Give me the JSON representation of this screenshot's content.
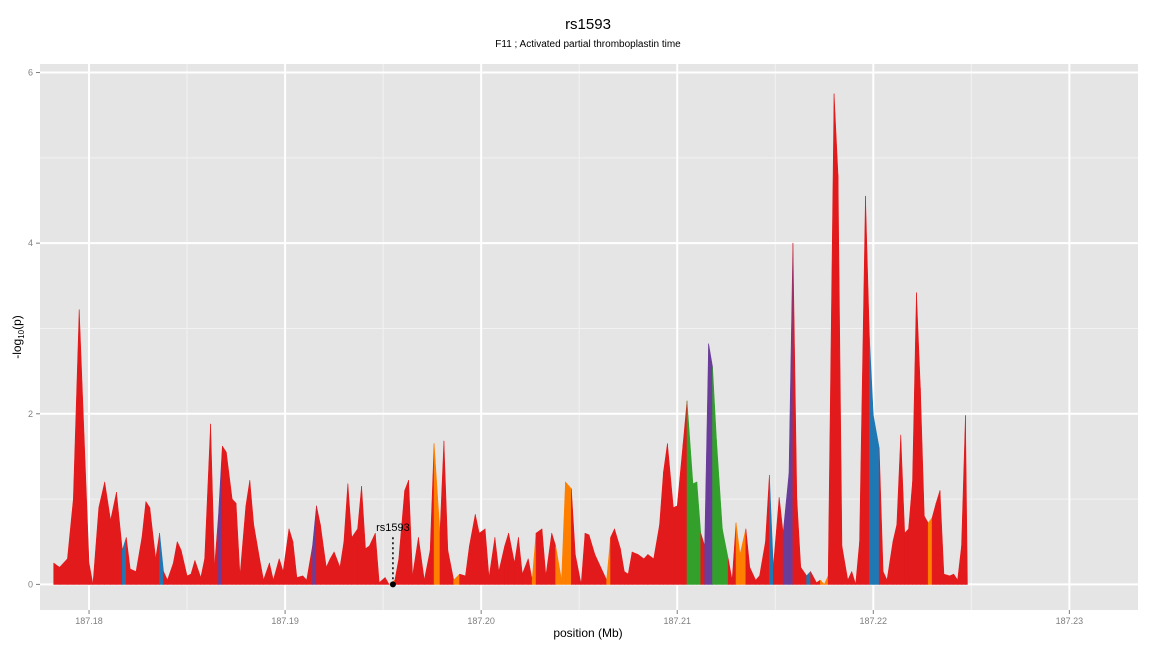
{
  "chart_data": {
    "type": "area",
    "title": "rs1593",
    "subtitle": "F11 ; Activated partial thromboplastin time",
    "xlabel": "position (Mb)",
    "ylabel": "-log10(p)",
    "ylabel_main": "-log",
    "ylabel_sub": "10",
    "ylabel_tail": "(p)",
    "xlim": [
      187.1775,
      187.2335
    ],
    "ylim": [
      -0.3,
      6.1
    ],
    "x_ticks": [
      187.18,
      187.19,
      187.2,
      187.21,
      187.22,
      187.23
    ],
    "x_tick_labels": [
      "187.18",
      "187.19",
      "187.20",
      "187.21",
      "187.22",
      "187.23"
    ],
    "y_ticks": [
      0,
      2,
      4,
      6
    ],
    "y_tick_labels": [
      "0",
      "2",
      "4",
      "6"
    ],
    "grid": true,
    "colors": {
      "panel": "#e5e5e5",
      "grid_major": "#ffffff",
      "grid_minor": "#f2f2f2",
      "red": "#e31a1c",
      "orange": "#ff7f00",
      "green": "#33a02c",
      "blue": "#1f78b4",
      "purple": "#6a3d9a"
    },
    "annotation": {
      "label": "rs1593",
      "x": 187.1955,
      "y": 0,
      "label_y": 0.6
    },
    "series": [
      {
        "x": 187.1782,
        "y": 0.25,
        "c": "red"
      },
      {
        "x": 187.1785,
        "y": 0.2,
        "c": "red"
      },
      {
        "x": 187.1789,
        "y": 0.3,
        "c": "red"
      },
      {
        "x": 187.1792,
        "y": 1.0,
        "c": "red"
      },
      {
        "x": 187.1795,
        "y": 3.22,
        "c": "red"
      },
      {
        "x": 187.18,
        "y": 0.25,
        "c": "red"
      },
      {
        "x": 187.1802,
        "y": 0.0,
        "c": "red"
      },
      {
        "x": 187.1805,
        "y": 0.9,
        "c": "red"
      },
      {
        "x": 187.1808,
        "y": 1.2,
        "c": "red"
      },
      {
        "x": 187.1811,
        "y": 0.75,
        "c": "red"
      },
      {
        "x": 187.1814,
        "y": 1.08,
        "c": "red"
      },
      {
        "x": 187.1817,
        "y": 0.4,
        "c": "red"
      },
      {
        "x": 187.1819,
        "y": 0.55,
        "c": "blue"
      },
      {
        "x": 187.1821,
        "y": 0.18,
        "c": "red"
      },
      {
        "x": 187.1824,
        "y": 0.15,
        "c": "red"
      },
      {
        "x": 187.1827,
        "y": 0.55,
        "c": "red"
      },
      {
        "x": 187.1829,
        "y": 0.97,
        "c": "red"
      },
      {
        "x": 187.1831,
        "y": 0.9,
        "c": "red"
      },
      {
        "x": 187.1834,
        "y": 0.3,
        "c": "red"
      },
      {
        "x": 187.1836,
        "y": 0.6,
        "c": "red"
      },
      {
        "x": 187.1838,
        "y": 0.15,
        "c": "blue"
      },
      {
        "x": 187.184,
        "y": 0.05,
        "c": "red"
      },
      {
        "x": 187.1843,
        "y": 0.25,
        "c": "red"
      },
      {
        "x": 187.1845,
        "y": 0.5,
        "c": "red"
      },
      {
        "x": 187.1847,
        "y": 0.4,
        "c": "red"
      },
      {
        "x": 187.185,
        "y": 0.1,
        "c": "red"
      },
      {
        "x": 187.1852,
        "y": 0.12,
        "c": "red"
      },
      {
        "x": 187.1854,
        "y": 0.28,
        "c": "red"
      },
      {
        "x": 187.1857,
        "y": 0.08,
        "c": "red"
      },
      {
        "x": 187.1859,
        "y": 0.3,
        "c": "red"
      },
      {
        "x": 187.1862,
        "y": 1.88,
        "c": "red"
      },
      {
        "x": 187.1864,
        "y": 0.2,
        "c": "red"
      },
      {
        "x": 187.1866,
        "y": 0.8,
        "c": "red"
      },
      {
        "x": 187.1868,
        "y": 1.62,
        "c": "purple"
      },
      {
        "x": 187.187,
        "y": 1.55,
        "c": "red"
      },
      {
        "x": 187.1873,
        "y": 1.0,
        "c": "red"
      },
      {
        "x": 187.1875,
        "y": 0.95,
        "c": "red"
      },
      {
        "x": 187.1877,
        "y": 0.1,
        "c": "red"
      },
      {
        "x": 187.188,
        "y": 0.92,
        "c": "red"
      },
      {
        "x": 187.1882,
        "y": 1.22,
        "c": "red"
      },
      {
        "x": 187.1884,
        "y": 0.7,
        "c": "red"
      },
      {
        "x": 187.1887,
        "y": 0.3,
        "c": "red"
      },
      {
        "x": 187.1889,
        "y": 0.05,
        "c": "red"
      },
      {
        "x": 187.1892,
        "y": 0.25,
        "c": "red"
      },
      {
        "x": 187.1894,
        "y": 0.05,
        "c": "red"
      },
      {
        "x": 187.1897,
        "y": 0.3,
        "c": "red"
      },
      {
        "x": 187.1899,
        "y": 0.15,
        "c": "red"
      },
      {
        "x": 187.1902,
        "y": 0.65,
        "c": "red"
      },
      {
        "x": 187.1904,
        "y": 0.5,
        "c": "red"
      },
      {
        "x": 187.1906,
        "y": 0.08,
        "c": "red"
      },
      {
        "x": 187.1909,
        "y": 0.1,
        "c": "red"
      },
      {
        "x": 187.1911,
        "y": 0.05,
        "c": "red"
      },
      {
        "x": 187.1914,
        "y": 0.45,
        "c": "red"
      },
      {
        "x": 187.1916,
        "y": 0.92,
        "c": "purple"
      },
      {
        "x": 187.1918,
        "y": 0.7,
        "c": "red"
      },
      {
        "x": 187.1921,
        "y": 0.2,
        "c": "red"
      },
      {
        "x": 187.1923,
        "y": 0.3,
        "c": "red"
      },
      {
        "x": 187.1925,
        "y": 0.38,
        "c": "red"
      },
      {
        "x": 187.1928,
        "y": 0.2,
        "c": "red"
      },
      {
        "x": 187.193,
        "y": 0.5,
        "c": "red"
      },
      {
        "x": 187.1932,
        "y": 1.18,
        "c": "red"
      },
      {
        "x": 187.1934,
        "y": 0.55,
        "c": "red"
      },
      {
        "x": 187.1937,
        "y": 0.65,
        "c": "red"
      },
      {
        "x": 187.1939,
        "y": 1.15,
        "c": "red"
      },
      {
        "x": 187.1941,
        "y": 0.42,
        "c": "red"
      },
      {
        "x": 187.1943,
        "y": 0.45,
        "c": "red"
      },
      {
        "x": 187.1946,
        "y": 0.6,
        "c": "red"
      },
      {
        "x": 187.1948,
        "y": 0.02,
        "c": "red"
      },
      {
        "x": 187.1951,
        "y": 0.08,
        "c": "red"
      },
      {
        "x": 187.1953,
        "y": 0.0,
        "c": "red"
      },
      {
        "x": 187.1956,
        "y": 0.05,
        "c": "orange"
      },
      {
        "x": 187.1958,
        "y": 0.3,
        "c": "red"
      },
      {
        "x": 187.1961,
        "y": 1.1,
        "c": "red"
      },
      {
        "x": 187.1963,
        "y": 1.22,
        "c": "red"
      },
      {
        "x": 187.1965,
        "y": 0.1,
        "c": "red"
      },
      {
        "x": 187.1968,
        "y": 0.55,
        "c": "red"
      },
      {
        "x": 187.1971,
        "y": 0.05,
        "c": "red"
      },
      {
        "x": 187.1974,
        "y": 0.4,
        "c": "red"
      },
      {
        "x": 187.1976,
        "y": 1.65,
        "c": "red"
      },
      {
        "x": 187.1979,
        "y": 0.6,
        "c": "orange"
      },
      {
        "x": 187.1981,
        "y": 1.68,
        "c": "red"
      },
      {
        "x": 187.1983,
        "y": 0.4,
        "c": "red"
      },
      {
        "x": 187.1986,
        "y": 0.05,
        "c": "red"
      },
      {
        "x": 187.1989,
        "y": 0.12,
        "c": "orange"
      },
      {
        "x": 187.1992,
        "y": 0.1,
        "c": "red"
      },
      {
        "x": 187.1994,
        "y": 0.45,
        "c": "red"
      },
      {
        "x": 187.1997,
        "y": 0.82,
        "c": "red"
      },
      {
        "x": 187.1999,
        "y": 0.6,
        "c": "red"
      },
      {
        "x": 187.2002,
        "y": 0.65,
        "c": "red"
      },
      {
        "x": 187.2004,
        "y": 0.08,
        "c": "red"
      },
      {
        "x": 187.2007,
        "y": 0.55,
        "c": "red"
      },
      {
        "x": 187.2009,
        "y": 0.15,
        "c": "red"
      },
      {
        "x": 187.2012,
        "y": 0.45,
        "c": "red"
      },
      {
        "x": 187.2014,
        "y": 0.6,
        "c": "red"
      },
      {
        "x": 187.2017,
        "y": 0.25,
        "c": "red"
      },
      {
        "x": 187.2019,
        "y": 0.55,
        "c": "red"
      },
      {
        "x": 187.2021,
        "y": 0.12,
        "c": "red"
      },
      {
        "x": 187.2024,
        "y": 0.3,
        "c": "red"
      },
      {
        "x": 187.2026,
        "y": 0.05,
        "c": "red"
      },
      {
        "x": 187.2028,
        "y": 0.6,
        "c": "orange"
      },
      {
        "x": 187.2031,
        "y": 0.65,
        "c": "red"
      },
      {
        "x": 187.2033,
        "y": 0.1,
        "c": "red"
      },
      {
        "x": 187.2036,
        "y": 0.6,
        "c": "red"
      },
      {
        "x": 187.2038,
        "y": 0.45,
        "c": "red"
      },
      {
        "x": 187.2041,
        "y": 0.05,
        "c": "orange"
      },
      {
        "x": 187.2043,
        "y": 1.2,
        "c": "orange"
      },
      {
        "x": 187.2046,
        "y": 1.12,
        "c": "orange"
      },
      {
        "x": 187.2048,
        "y": 0.35,
        "c": "red"
      },
      {
        "x": 187.2051,
        "y": 0.0,
        "c": "red"
      },
      {
        "x": 187.2053,
        "y": 0.6,
        "c": "red"
      },
      {
        "x": 187.2055,
        "y": 0.58,
        "c": "red"
      },
      {
        "x": 187.2058,
        "y": 0.35,
        "c": "red"
      },
      {
        "x": 187.2061,
        "y": 0.2,
        "c": "red"
      },
      {
        "x": 187.2064,
        "y": 0.05,
        "c": "red"
      },
      {
        "x": 187.2066,
        "y": 0.55,
        "c": "orange"
      },
      {
        "x": 187.2068,
        "y": 0.65,
        "c": "red"
      },
      {
        "x": 187.2071,
        "y": 0.42,
        "c": "red"
      },
      {
        "x": 187.2073,
        "y": 0.15,
        "c": "red"
      },
      {
        "x": 187.2075,
        "y": 0.12,
        "c": "red"
      },
      {
        "x": 187.2077,
        "y": 0.38,
        "c": "red"
      },
      {
        "x": 187.208,
        "y": 0.35,
        "c": "red"
      },
      {
        "x": 187.2083,
        "y": 0.3,
        "c": "red"
      },
      {
        "x": 187.2085,
        "y": 0.35,
        "c": "red"
      },
      {
        "x": 187.2088,
        "y": 0.3,
        "c": "red"
      },
      {
        "x": 187.2091,
        "y": 0.7,
        "c": "red"
      },
      {
        "x": 187.2093,
        "y": 1.32,
        "c": "red"
      },
      {
        "x": 187.2095,
        "y": 1.65,
        "c": "red"
      },
      {
        "x": 187.2098,
        "y": 0.9,
        "c": "red"
      },
      {
        "x": 187.21,
        "y": 0.92,
        "c": "red"
      },
      {
        "x": 187.2103,
        "y": 1.65,
        "c": "red"
      },
      {
        "x": 187.2105,
        "y": 2.15,
        "c": "red"
      },
      {
        "x": 187.2108,
        "y": 1.18,
        "c": "green"
      },
      {
        "x": 187.211,
        "y": 1.2,
        "c": "green"
      },
      {
        "x": 187.2112,
        "y": 0.6,
        "c": "green"
      },
      {
        "x": 187.2114,
        "y": 0.45,
        "c": "red"
      },
      {
        "x": 187.2116,
        "y": 2.82,
        "c": "purple"
      },
      {
        "x": 187.2118,
        "y": 2.55,
        "c": "purple"
      },
      {
        "x": 187.212,
        "y": 1.7,
        "c": "green"
      },
      {
        "x": 187.2123,
        "y": 0.65,
        "c": "green"
      },
      {
        "x": 187.2126,
        "y": 0.3,
        "c": "green"
      },
      {
        "x": 187.2128,
        "y": 0.05,
        "c": "red"
      },
      {
        "x": 187.213,
        "y": 0.72,
        "c": "red"
      },
      {
        "x": 187.2132,
        "y": 0.35,
        "c": "orange"
      },
      {
        "x": 187.2135,
        "y": 0.65,
        "c": "orange"
      },
      {
        "x": 187.2137,
        "y": 0.2,
        "c": "red"
      },
      {
        "x": 187.214,
        "y": 0.05,
        "c": "red"
      },
      {
        "x": 187.2142,
        "y": 0.1,
        "c": "red"
      },
      {
        "x": 187.2145,
        "y": 0.5,
        "c": "red"
      },
      {
        "x": 187.2147,
        "y": 1.28,
        "c": "red"
      },
      {
        "x": 187.2149,
        "y": 0.2,
        "c": "blue"
      },
      {
        "x": 187.2152,
        "y": 1.02,
        "c": "red"
      },
      {
        "x": 187.2154,
        "y": 0.6,
        "c": "red"
      },
      {
        "x": 187.2157,
        "y": 1.3,
        "c": "purple"
      },
      {
        "x": 187.2159,
        "y": 4.0,
        "c": "purple"
      },
      {
        "x": 187.2161,
        "y": 1.0,
        "c": "red"
      },
      {
        "x": 187.2163,
        "y": 0.2,
        "c": "red"
      },
      {
        "x": 187.2166,
        "y": 0.1,
        "c": "red"
      },
      {
        "x": 187.2168,
        "y": 0.15,
        "c": "blue"
      },
      {
        "x": 187.2171,
        "y": 0.02,
        "c": "red"
      },
      {
        "x": 187.2173,
        "y": 0.05,
        "c": "red"
      },
      {
        "x": 187.2175,
        "y": 0.0,
        "c": "orange"
      },
      {
        "x": 187.2177,
        "y": 0.1,
        "c": "orange"
      },
      {
        "x": 187.218,
        "y": 5.75,
        "c": "red"
      },
      {
        "x": 187.2182,
        "y": 4.8,
        "c": "red"
      },
      {
        "x": 187.2184,
        "y": 0.45,
        "c": "red"
      },
      {
        "x": 187.2187,
        "y": 0.05,
        "c": "red"
      },
      {
        "x": 187.2189,
        "y": 0.15,
        "c": "red"
      },
      {
        "x": 187.2191,
        "y": 0.0,
        "c": "red"
      },
      {
        "x": 187.2193,
        "y": 0.5,
        "c": "red"
      },
      {
        "x": 187.2196,
        "y": 4.55,
        "c": "red"
      },
      {
        "x": 187.2198,
        "y": 2.9,
        "c": "red"
      },
      {
        "x": 187.22,
        "y": 1.98,
        "c": "blue"
      },
      {
        "x": 187.2203,
        "y": 1.6,
        "c": "blue"
      },
      {
        "x": 187.2205,
        "y": 0.15,
        "c": "red"
      },
      {
        "x": 187.2207,
        "y": 0.05,
        "c": "red"
      },
      {
        "x": 187.221,
        "y": 0.5,
        "c": "red"
      },
      {
        "x": 187.2212,
        "y": 0.7,
        "c": "red"
      },
      {
        "x": 187.2214,
        "y": 1.75,
        "c": "red"
      },
      {
        "x": 187.2216,
        "y": 0.6,
        "c": "red"
      },
      {
        "x": 187.2218,
        "y": 0.65,
        "c": "red"
      },
      {
        "x": 187.222,
        "y": 1.2,
        "c": "red"
      },
      {
        "x": 187.2222,
        "y": 3.42,
        "c": "red"
      },
      {
        "x": 187.2224,
        "y": 2.3,
        "c": "red"
      },
      {
        "x": 187.2226,
        "y": 0.8,
        "c": "red"
      },
      {
        "x": 187.2228,
        "y": 0.72,
        "c": "red"
      },
      {
        "x": 187.223,
        "y": 0.78,
        "c": "orange"
      },
      {
        "x": 187.2232,
        "y": 0.95,
        "c": "red"
      },
      {
        "x": 187.2234,
        "y": 1.1,
        "c": "red"
      },
      {
        "x": 187.2236,
        "y": 0.12,
        "c": "red"
      },
      {
        "x": 187.2239,
        "y": 0.1,
        "c": "red"
      },
      {
        "x": 187.2241,
        "y": 0.12,
        "c": "red"
      },
      {
        "x": 187.2243,
        "y": 0.05,
        "c": "red"
      },
      {
        "x": 187.2245,
        "y": 0.45,
        "c": "red"
      },
      {
        "x": 187.2247,
        "y": 1.98,
        "c": "red"
      },
      {
        "x": 187.2248,
        "y": 0.0,
        "c": "red"
      }
    ]
  }
}
